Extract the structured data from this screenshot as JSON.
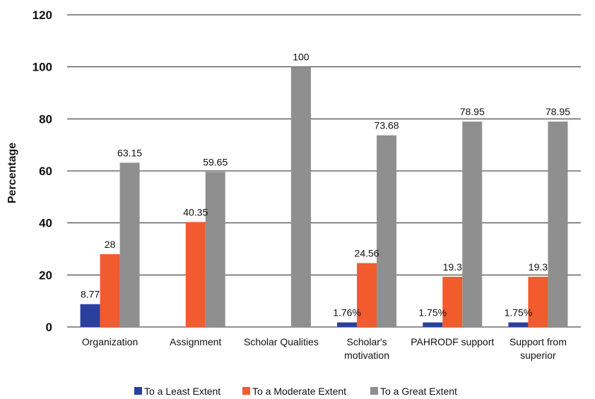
{
  "chart_data": {
    "type": "bar",
    "title": "",
    "xlabel": "",
    "ylabel": "Percentage",
    "ylim": [
      0,
      120
    ],
    "yticks": [
      "0",
      "20",
      "40",
      "60",
      "80",
      "100",
      "120"
    ],
    "grid": true,
    "legend_position": "bottom",
    "categories": [
      [
        "Organization"
      ],
      [
        "Assignment"
      ],
      [
        "Scholar Qualities"
      ],
      [
        "Scholar's",
        "motivation"
      ],
      [
        "PAHRODF support"
      ],
      [
        "Support from",
        "superior"
      ]
    ],
    "series": [
      {
        "name": "To a Least Extent",
        "color": "#2b3f9e",
        "values": [
          8.77,
          null,
          null,
          1.76,
          1.75,
          1.75
        ],
        "labels": [
          "8.77",
          "",
          "",
          "1.76%",
          "1.75%",
          "1.75%"
        ]
      },
      {
        "name": "To a Moderate Extent",
        "color": "#f25b2e",
        "values": [
          28,
          40.35,
          null,
          24.56,
          19.3,
          19.3
        ],
        "labels": [
          "28",
          "40.35",
          "",
          "24.56",
          "19.3",
          "19.3"
        ]
      },
      {
        "name": "To a Great Extent",
        "color": "#8f8f8f",
        "values": [
          63.15,
          59.65,
          100,
          73.68,
          78.95,
          78.95
        ],
        "labels": [
          "63.15",
          "59.65",
          "100",
          "73.68",
          "78.95",
          "78.95"
        ]
      }
    ]
  }
}
